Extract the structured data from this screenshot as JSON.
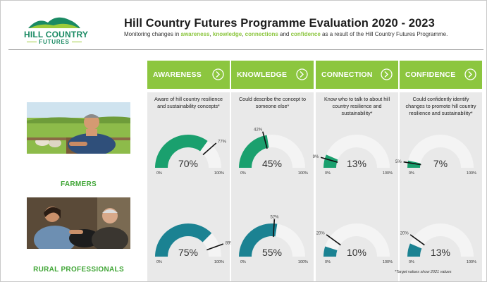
{
  "header": {
    "logo": {
      "line1": "HILL COUNTRY",
      "line2": "FUTURES"
    },
    "title": "Hill Country Futures Programme Evaluation 2020 - 2023",
    "subtitle_parts": [
      {
        "text": "Monitoring changes in ",
        "hl": false
      },
      {
        "text": "awareness",
        "hl": true
      },
      {
        "text": ", ",
        "hl": false
      },
      {
        "text": "knowledge",
        "hl": true
      },
      {
        "text": ", ",
        "hl": false
      },
      {
        "text": "connections",
        "hl": true
      },
      {
        "text": " and ",
        "hl": false
      },
      {
        "text": "confidence",
        "hl": true
      },
      {
        "text": " as a result of the Hill Country Futures Programme.",
        "hl": false
      }
    ]
  },
  "rows": [
    {
      "label": "FARMERS",
      "color": "#1aa06e"
    },
    {
      "label": "RURAL PROFESSIONALS",
      "color": "#1b8292"
    }
  ],
  "scale": {
    "min": "0%",
    "max": "100%"
  },
  "colors": {
    "accent": "#8cc63f",
    "track": "#f4f4f4",
    "panel": "#e9e9e9",
    "target": "#111111"
  },
  "columns": [
    {
      "key": "awareness",
      "label": "AWARENESS",
      "description": "Aware of hill country resilience and sustainability concepts*",
      "gauges": [
        {
          "value": 70,
          "display": "70%",
          "target": 77,
          "target_label": "77%"
        },
        {
          "value": 75,
          "display": "75%",
          "target": 89,
          "target_label": "89%"
        }
      ]
    },
    {
      "key": "knowledge",
      "label": "KNOWLEDGE",
      "description": "Could describe the concept to someone else*",
      "gauges": [
        {
          "value": 45,
          "display": "45%",
          "target": 42,
          "target_label": "42%"
        },
        {
          "value": 55,
          "display": "55%",
          "target": 52,
          "target_label": "52%"
        }
      ]
    },
    {
      "key": "connection",
      "label": "CONNECTION",
      "description": "Know who to talk to about hill country resilience and sustainability*",
      "gauges": [
        {
          "value": 13,
          "display": "13%",
          "target": 9,
          "target_label": "9%"
        },
        {
          "value": 10,
          "display": "10%",
          "target": 20,
          "target_label": "20%"
        }
      ]
    },
    {
      "key": "confidence",
      "label": "CONFIDENCE",
      "description": "Could confidently identify changes to promote hill country resilience and sustainability*",
      "gauges": [
        {
          "value": 7,
          "display": "7%",
          "target": 5,
          "target_label": "5%"
        },
        {
          "value": 13,
          "display": "13%",
          "target": 20,
          "target_label": "20%"
        }
      ]
    }
  ],
  "footnote": "*Target values show 2021 values"
}
